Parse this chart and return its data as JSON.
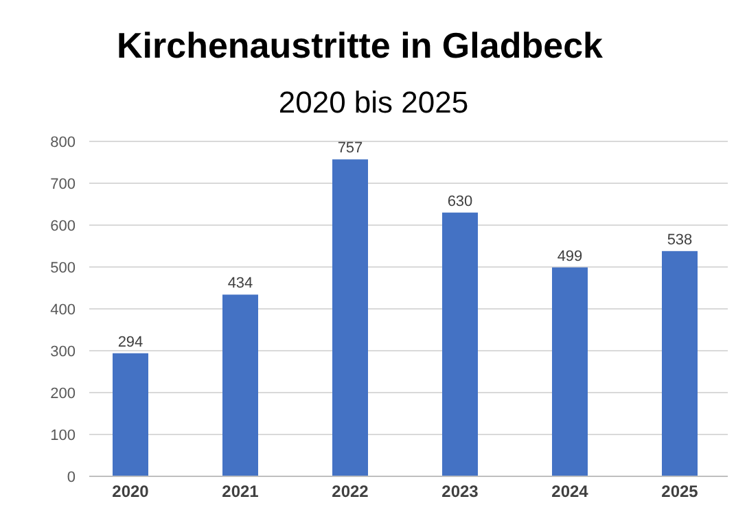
{
  "chart_data": {
    "type": "bar",
    "title": "Kirchenaustritte in Gladbeck",
    "subtitle": "2020 bis 2025",
    "categories": [
      "2020",
      "2021",
      "2022",
      "2023",
      "2024",
      "2025"
    ],
    "values": [
      294,
      434,
      757,
      630,
      499,
      538
    ],
    "color": "#4472c4",
    "ylim": [
      0,
      800
    ],
    "yticks": [
      0,
      100,
      200,
      300,
      400,
      500,
      600,
      700,
      800
    ],
    "grid": "y",
    "data_labels": true
  }
}
